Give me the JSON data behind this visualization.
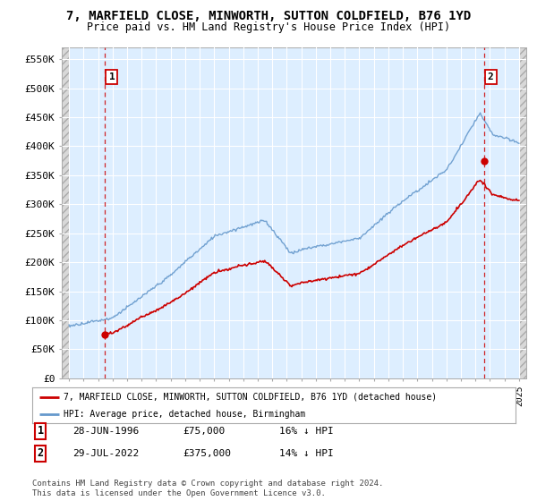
{
  "title": "7, MARFIELD CLOSE, MINWORTH, SUTTON COLDFIELD, B76 1YD",
  "subtitle": "Price paid vs. HM Land Registry's House Price Index (HPI)",
  "ylabel_ticks": [
    "£0",
    "£50K",
    "£100K",
    "£150K",
    "£200K",
    "£250K",
    "£300K",
    "£350K",
    "£400K",
    "£450K",
    "£500K",
    "£550K"
  ],
  "ytick_values": [
    0,
    50000,
    100000,
    150000,
    200000,
    250000,
    300000,
    350000,
    400000,
    450000,
    500000,
    550000
  ],
  "ylim": [
    0,
    570000
  ],
  "xlim_start": 1993.5,
  "xlim_end": 2025.5,
  "sale1_x": 1996.49,
  "sale1_y": 75000,
  "sale2_x": 2022.58,
  "sale2_y": 375000,
  "sale1_label": "28-JUN-1996",
  "sale1_price": "£75,000",
  "sale1_hpi": "16% ↓ HPI",
  "sale2_label": "29-JUL-2022",
  "sale2_price": "£375,000",
  "sale2_hpi": "14% ↓ HPI",
  "legend_line1": "7, MARFIELD CLOSE, MINWORTH, SUTTON COLDFIELD, B76 1YD (detached house)",
  "legend_line2": "HPI: Average price, detached house, Birmingham",
  "footer": "Contains HM Land Registry data © Crown copyright and database right 2024.\nThis data is licensed under the Open Government Licence v3.0.",
  "price_color": "#cc0000",
  "hpi_color": "#6699cc",
  "background_color": "#ffffff",
  "plot_bg_color": "#ddeeff",
  "grid_color": "#ffffff"
}
